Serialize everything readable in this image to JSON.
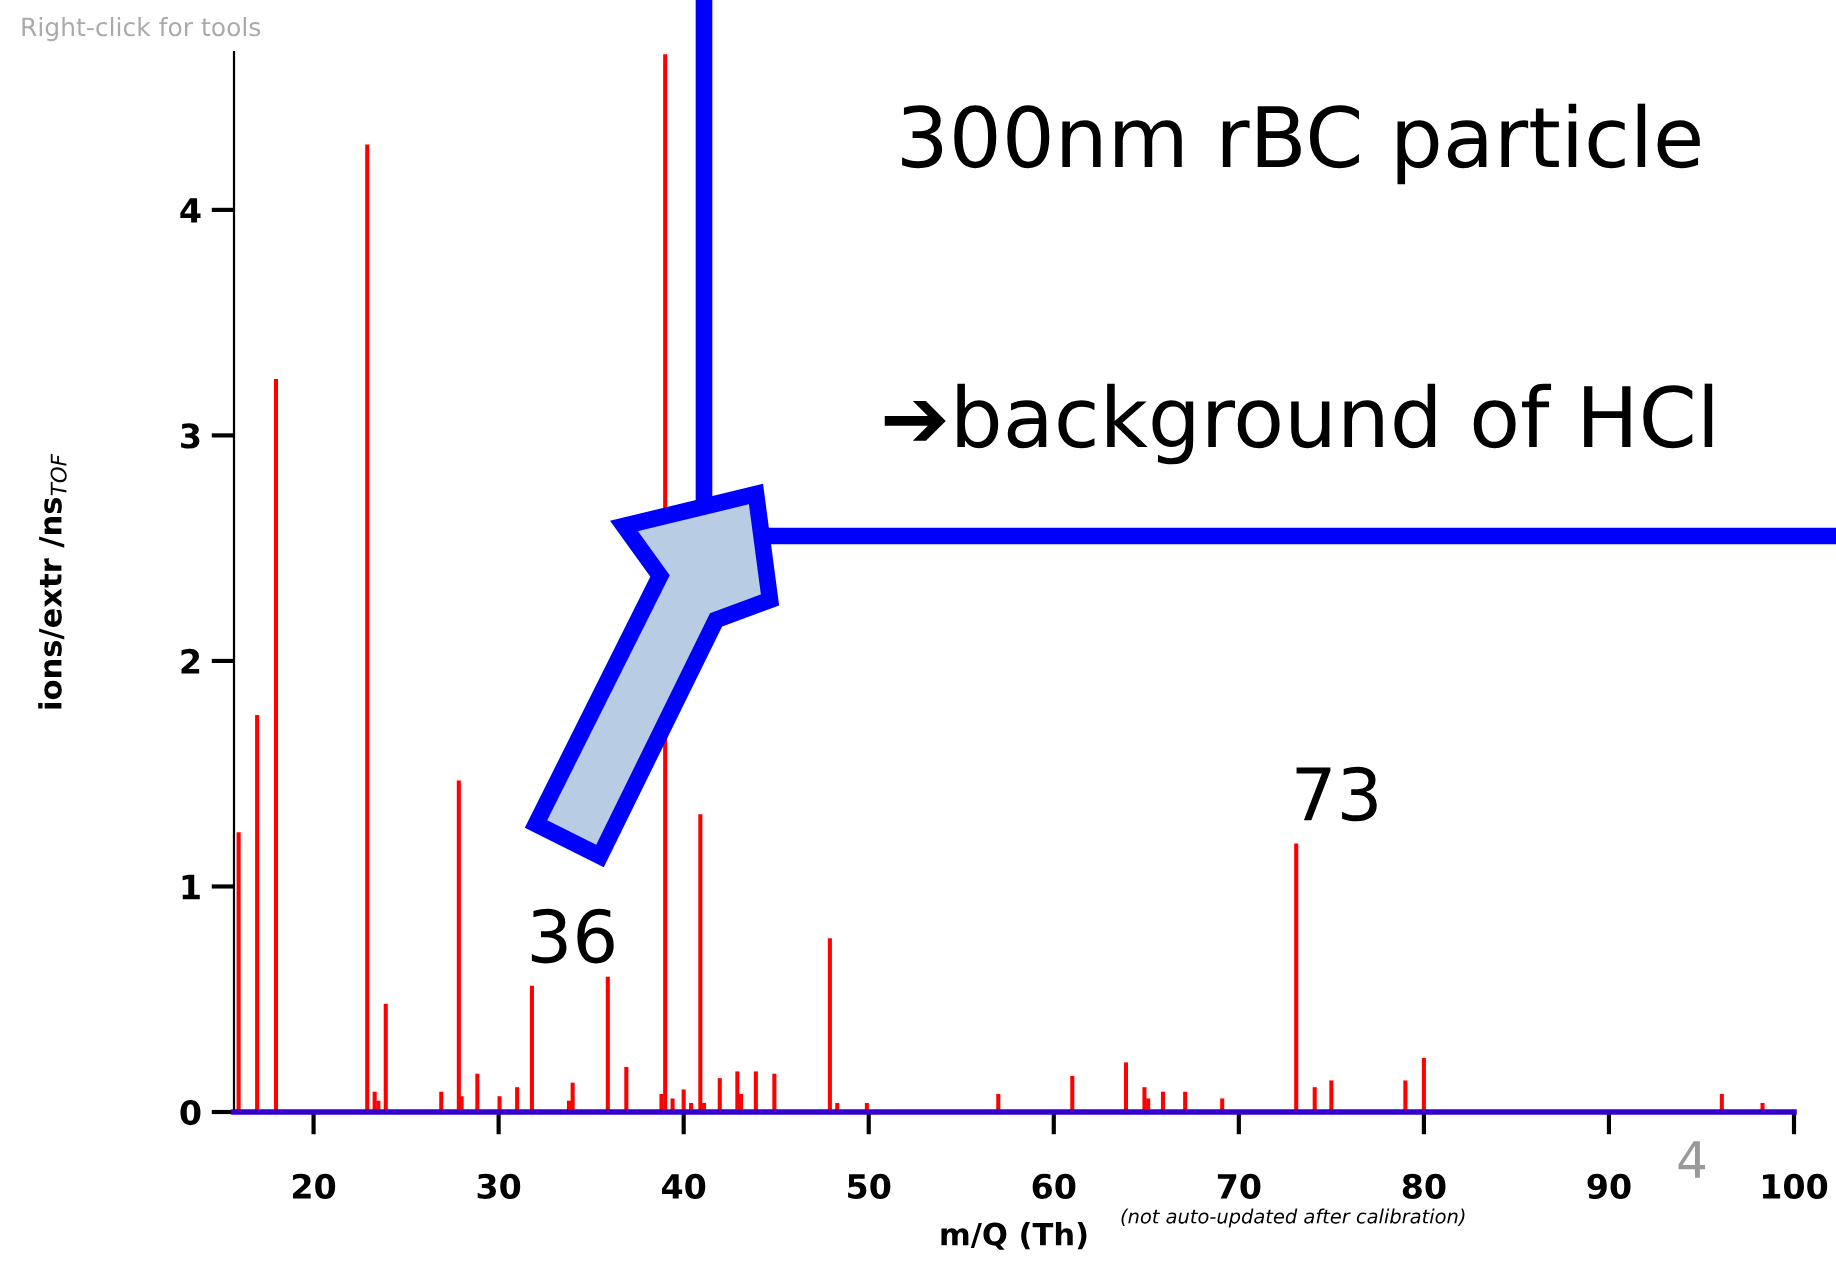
{
  "chart_data": {
    "type": "bar",
    "xlabel": "m/Q (Th)",
    "ylabel": "ions/extr /ns$_{TOF}$",
    "x": [
      15.95,
      16.95,
      17.97,
      22.9,
      23.3,
      23.5,
      23.9,
      26.9,
      27.85,
      28.0,
      28.85,
      30.05,
      31.0,
      31.8,
      33.8,
      34.0,
      35.9,
      36.9,
      38.8,
      39.0,
      39.4,
      40.0,
      40.4,
      40.9,
      41.1,
      41.95,
      42.9,
      43.1,
      43.9,
      44.9,
      47.9,
      48.3,
      49.9,
      57.0,
      61.0,
      63.9,
      64.9,
      65.1,
      65.9,
      67.1,
      69.1,
      73.1,
      74.1,
      75.0,
      79.0,
      80.0,
      96.1,
      98.3
    ],
    "values": [
      1.24,
      1.76,
      3.25,
      4.29,
      0.09,
      0.05,
      0.48,
      0.09,
      1.47,
      0.07,
      0.17,
      0.07,
      0.11,
      0.56,
      0.05,
      0.13,
      0.6,
      0.2,
      0.08,
      4.69,
      0.06,
      0.1,
      0.04,
      1.32,
      0.04,
      0.15,
      0.18,
      0.08,
      0.18,
      0.17,
      0.77,
      0.04,
      0.04,
      0.08,
      0.16,
      0.22,
      0.11,
      0.06,
      0.09,
      0.09,
      0.06,
      1.19,
      0.11,
      0.14,
      0.14,
      0.24,
      0.08,
      0.04
    ],
    "color": "#ff0000",
    "xlim": [
      15.7,
      100
    ],
    "xticks": [
      20,
      30,
      40,
      50,
      60,
      70,
      80,
      90,
      100
    ],
    "ylim": [
      0,
      4.7
    ],
    "yticks": [
      0,
      1,
      2,
      3,
      4
    ],
    "grid": false,
    "legend": false,
    "annotations": [
      {
        "text": "36",
        "x": 31.8,
        "y": 0.56
      },
      {
        "text": "73",
        "x": 73.1,
        "y": 1.19
      },
      "(not auto-updated after calibration)",
      "Right-click for tools",
      "4",
      "300nm rBC particle",
      "➔background of HCl"
    ]
  }
}
